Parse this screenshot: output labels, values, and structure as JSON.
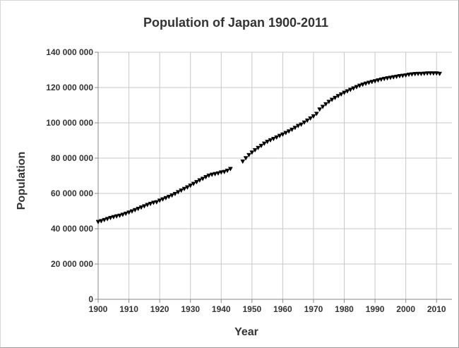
{
  "chart_data": {
    "type": "scatter",
    "title": "Population of Japan 1900-2011",
    "xlabel": "Year",
    "ylabel": "Population",
    "xlim": [
      1900,
      2015
    ],
    "ylim": [
      0,
      140000000
    ],
    "x_ticks": [
      "1900",
      "1910",
      "1920",
      "1930",
      "1940",
      "1950",
      "1960",
      "1970",
      "1980",
      "1990",
      "2000",
      "2010"
    ],
    "y_ticks": [
      "0",
      "20 000 000",
      "40 000 000",
      "60 000 000",
      "80 000 000",
      "100 000 000",
      "120 000 000",
      "140 000 000"
    ],
    "grid": true,
    "marker": "triangle-down",
    "marker_color": "#000000",
    "series": [
      {
        "x": [
          1900,
          1901,
          1902,
          1903,
          1904,
          1905,
          1906,
          1907,
          1908,
          1909,
          1910,
          1911,
          1912,
          1913,
          1914,
          1915,
          1916,
          1917,
          1918,
          1919,
          1920,
          1921,
          1922,
          1923,
          1924,
          1925,
          1926,
          1927,
          1928,
          1929,
          1930,
          1931,
          1932,
          1933,
          1934,
          1935,
          1936,
          1937,
          1938,
          1939,
          1940,
          1941,
          1942,
          1943,
          1947,
          1948,
          1949,
          1950,
          1951,
          1952,
          1953,
          1954,
          1955,
          1956,
          1957,
          1958,
          1959,
          1960,
          1961,
          1962,
          1963,
          1964,
          1965,
          1966,
          1967,
          1968,
          1969,
          1970,
          1971,
          1972,
          1973,
          1974,
          1975,
          1976,
          1977,
          1978,
          1979,
          1980,
          1981,
          1982,
          1983,
          1984,
          1985,
          1986,
          1987,
          1988,
          1989,
          1990,
          1991,
          1992,
          1993,
          1994,
          1995,
          1996,
          1997,
          1998,
          1999,
          2000,
          2001,
          2002,
          2003,
          2004,
          2005,
          2006,
          2007,
          2008,
          2009,
          2010,
          2011
        ],
        "y": [
          43847000,
          44359000,
          44964000,
          45546000,
          46135000,
          46620000,
          47038000,
          47416000,
          47965000,
          48554000,
          49184000,
          49852000,
          50577000,
          51305000,
          52039000,
          52752000,
          53496000,
          54134000,
          54739000,
          55033000,
          55963000,
          56666000,
          57390000,
          58119000,
          58876000,
          59737000,
          60741000,
          61659000,
          62595000,
          63461000,
          64450000,
          65457000,
          66434000,
          67432000,
          68309000,
          69254000,
          70114000,
          70630000,
          71013000,
          71380000,
          71933000,
          72218000,
          72880000,
          73903000,
          78101000,
          80002000,
          81773000,
          83200000,
          84541000,
          85808000,
          86981000,
          88239000,
          89276000,
          90172000,
          90928000,
          91767000,
          92641000,
          93419000,
          94287000,
          95181000,
          96156000,
          97182000,
          98275000,
          99036000,
          100196000,
          101331000,
          102536000,
          103720000,
          105145000,
          107595000,
          109104000,
          110573000,
          111940000,
          113094000,
          114165000,
          115190000,
          116155000,
          117060000,
          117902000,
          118728000,
          119536000,
          120305000,
          121049000,
          121660000,
          122239000,
          122745000,
          123205000,
          123611000,
          124101000,
          124567000,
          124938000,
          125265000,
          125570000,
          125864000,
          126166000,
          126486000,
          126686000,
          126926000,
          127316000,
          127486000,
          127694000,
          127787000,
          127768000,
          127901000,
          128033000,
          128084000,
          128032000,
          128057000,
          127799000
        ]
      }
    ]
  }
}
